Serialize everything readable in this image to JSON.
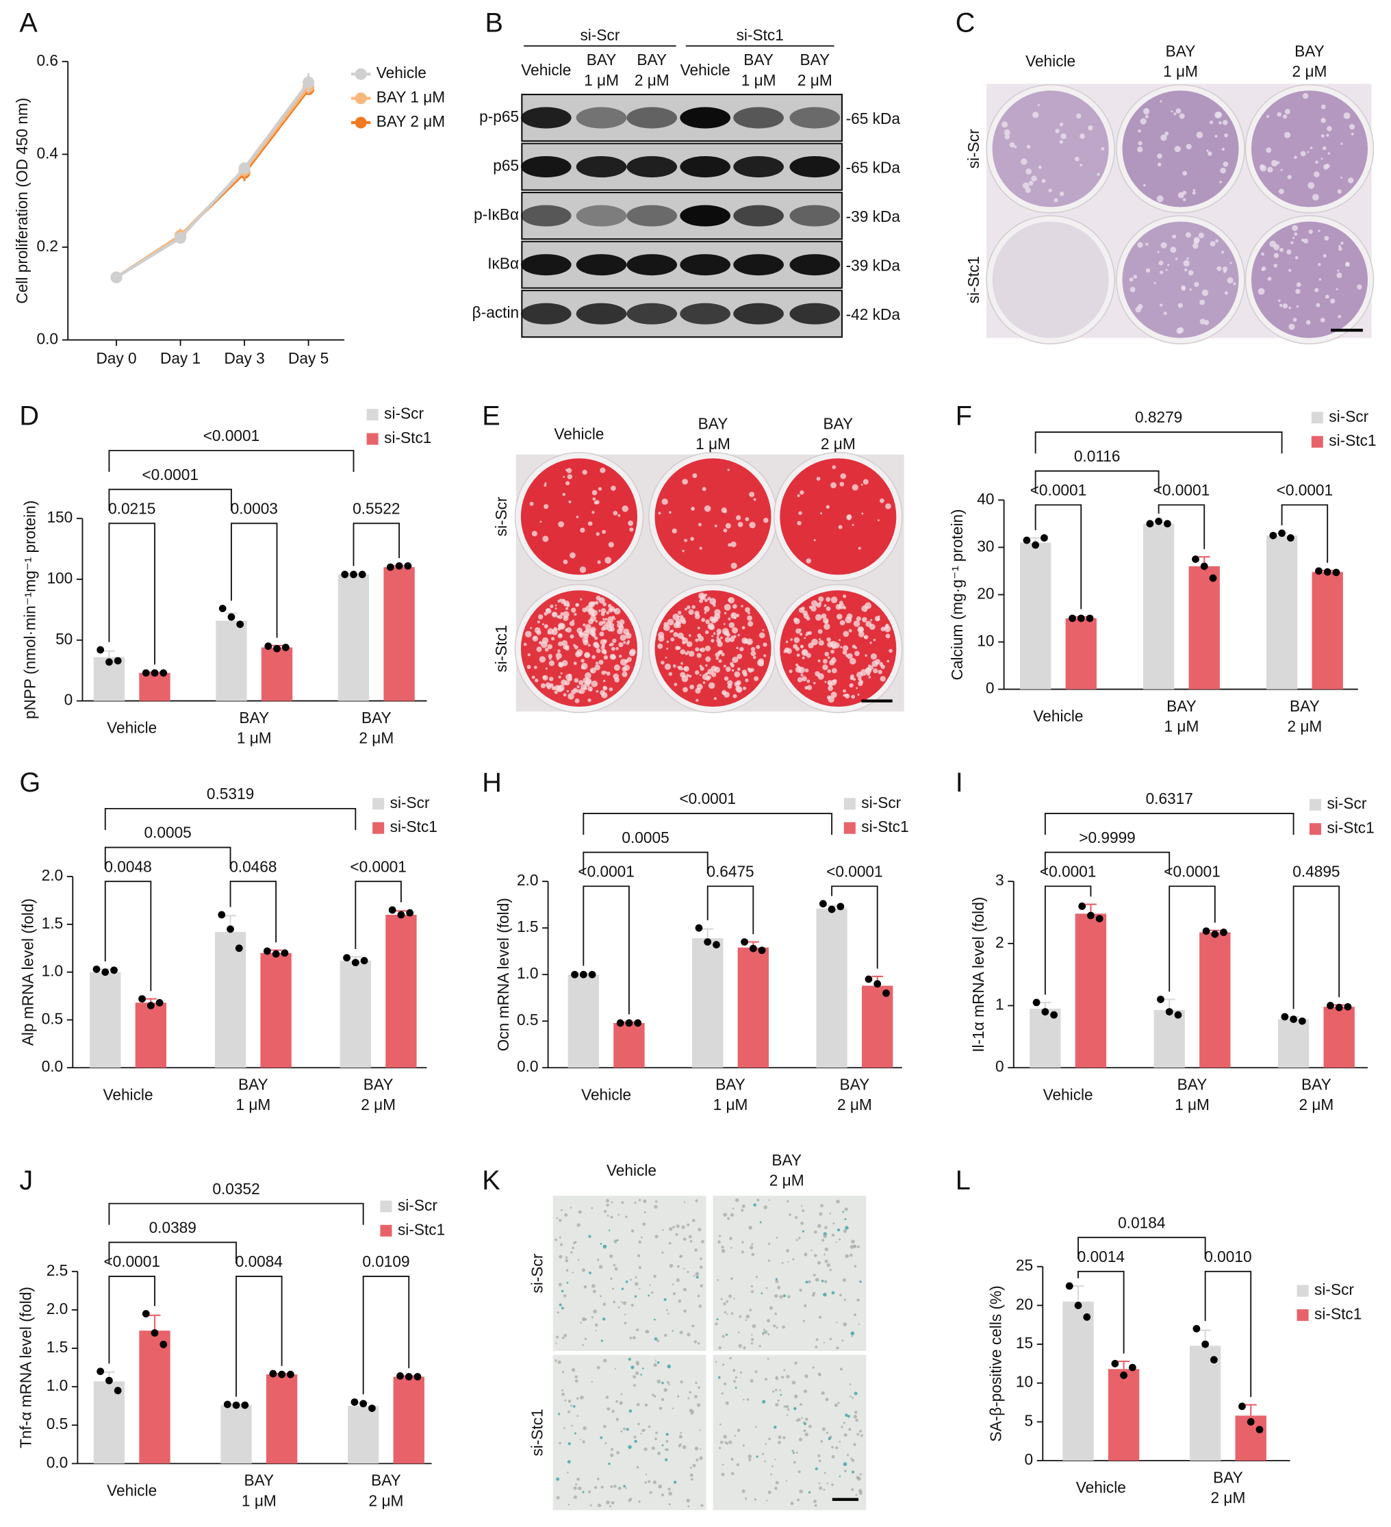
{
  "chart_data": [
    {
      "panel": "A",
      "type": "line",
      "ylabel": "Cell proliferation (OD 450 nm)",
      "categories": [
        [
          "Day 0"
        ],
        [
          "Day 1"
        ],
        [
          "Day 3"
        ],
        [
          "Day 5"
        ]
      ],
      "ylim": [
        0,
        0.6
      ],
      "yticks": [
        {
          "value": 0,
          "label": "0.0"
        },
        0.2,
        0.4,
        0.6
      ],
      "legend": "upper right",
      "series": [
        {
          "name": "Vehicle",
          "color": "#cfcfcf",
          "values": [
            0.135,
            0.22,
            0.37,
            0.555
          ],
          "errors": [
            0.005,
            0.012,
            0.012,
            0.02
          ]
        },
        {
          "name": "BAY 1 μM",
          "color": "#f7b77a",
          "values": [
            0.135,
            0.225,
            0.365,
            0.545
          ],
          "errors": [
            0.005,
            0.015,
            0.015,
            0.015
          ]
        },
        {
          "name": "BAY 2 μM",
          "color": "#f07a1f",
          "values": [
            0.135,
            0.225,
            0.36,
            0.54
          ],
          "errors": [
            0.005,
            0.01,
            0.018,
            0.012
          ]
        }
      ]
    },
    {
      "panel": "D",
      "type": "bar",
      "ylabel": "pNPP (nmol·min⁻¹mg⁻¹ protein)",
      "categories": [
        [
          "Vehicle"
        ],
        [
          "BAY",
          "1 μM"
        ],
        [
          "BAY",
          "2 μM"
        ]
      ],
      "ylim": [
        0,
        150
      ],
      "yticks": [
        0,
        50,
        100,
        150
      ],
      "legend": "upper right",
      "series": [
        {
          "name": "si-Scr",
          "color": "#d9d9d9",
          "values": [
            36,
            66,
            104
          ],
          "errors": [
            5,
            6,
            0.5
          ],
          "points": [
            [
              42,
              32,
              33
            ],
            [
              76,
              69,
              63
            ],
            [
              104,
              104,
              104
            ]
          ]
        },
        {
          "name": "si-Stc1",
          "color": "#e8626a",
          "values": [
            23,
            44,
            110
          ],
          "errors": [
            0.5,
            1.5,
            1
          ],
          "points": [
            [
              23,
              23,
              23
            ],
            [
              45,
              43,
              44
            ],
            [
              110,
              111,
              111
            ]
          ]
        }
      ],
      "comparisons": [
        {
          "label": "0.0215",
          "from": [
            0,
            0
          ],
          "to": [
            0,
            1
          ]
        },
        {
          "label": "0.0003",
          "from": [
            1,
            0
          ],
          "to": [
            1,
            1
          ]
        },
        {
          "label": "0.5522",
          "from": [
            2,
            0
          ],
          "to": [
            2,
            1
          ]
        },
        {
          "label": "<0.0001",
          "from": [
            0,
            0
          ],
          "to": [
            1,
            0
          ]
        },
        {
          "label": "<0.0001",
          "from": [
            0,
            0
          ],
          "to": [
            2,
            0
          ]
        }
      ]
    },
    {
      "panel": "F",
      "type": "bar",
      "ylabel": "Calcium (mg·g⁻¹ protein)",
      "categories": [
        [
          "Vehicle"
        ],
        [
          "BAY",
          "1 μM"
        ],
        [
          "BAY",
          "2 μM"
        ]
      ],
      "ylim": [
        0,
        40
      ],
      "yticks": [
        0,
        10,
        20,
        30,
        40
      ],
      "legend": "upper right",
      "series": [
        {
          "name": "si-Scr",
          "color": "#d9d9d9",
          "values": [
            31,
            35,
            32.5
          ],
          "errors": [
            1,
            0.3,
            0.5
          ],
          "points": [
            [
              31.5,
              30.5,
              32
            ],
            [
              35,
              35.5,
              35
            ],
            [
              32.5,
              33,
              32
            ]
          ]
        },
        {
          "name": "si-Stc1",
          "color": "#e8626a",
          "values": [
            15,
            26,
            24.8
          ],
          "errors": [
            0.3,
            2,
            0.3
          ],
          "points": [
            [
              15,
              15,
              15
            ],
            [
              27.5,
              26,
              23.5
            ],
            [
              25,
              24.8,
              24.7
            ]
          ]
        }
      ],
      "comparisons": [
        {
          "label": "<0.0001",
          "from": [
            0,
            0
          ],
          "to": [
            0,
            1
          ]
        },
        {
          "label": "<0.0001",
          "from": [
            1,
            0
          ],
          "to": [
            1,
            1
          ]
        },
        {
          "label": "<0.0001",
          "from": [
            2,
            0
          ],
          "to": [
            2,
            1
          ]
        },
        {
          "label": "0.0116",
          "from": [
            0,
            0
          ],
          "to": [
            1,
            0
          ]
        },
        {
          "label": "0.8279",
          "from": [
            0,
            0
          ],
          "to": [
            2,
            0
          ]
        }
      ]
    },
    {
      "panel": "G",
      "type": "bar",
      "ylabel": "Alp mRNA level (fold)",
      "categories": [
        [
          "Vehicle"
        ],
        [
          "BAY",
          "1 μM"
        ],
        [
          "BAY",
          "2 μM"
        ]
      ],
      "ylim": [
        0,
        2
      ],
      "yticks": [
        {
          "value": 0,
          "label": "0.0"
        },
        0.5,
        {
          "value": 1,
          "label": "1.0"
        },
        1.5,
        {
          "value": 2,
          "label": "2.0"
        }
      ],
      "legend": "upper right",
      "series": [
        {
          "name": "si-Scr",
          "color": "#d9d9d9",
          "values": [
            1.0,
            1.42,
            1.12
          ],
          "errors": [
            0.03,
            0.17,
            0.04
          ],
          "points": [
            [
              1.03,
              1.0,
              1.02
            ],
            [
              1.6,
              1.45,
              1.25
            ],
            [
              1.15,
              1.1,
              1.12
            ]
          ]
        },
        {
          "name": "si-Stc1",
          "color": "#e8626a",
          "values": [
            0.68,
            1.2,
            1.6
          ],
          "errors": [
            0.04,
            0.03,
            0.04
          ],
          "points": [
            [
              0.72,
              0.65,
              0.68
            ],
            [
              1.22,
              1.19,
              1.2
            ],
            [
              1.65,
              1.6,
              1.62
            ]
          ]
        }
      ],
      "comparisons": [
        {
          "label": "0.0048",
          "from": [
            0,
            0
          ],
          "to": [
            0,
            1
          ]
        },
        {
          "label": "0.0468",
          "from": [
            1,
            0
          ],
          "to": [
            1,
            1
          ]
        },
        {
          "label": "<0.0001",
          "from": [
            2,
            0
          ],
          "to": [
            2,
            1
          ]
        },
        {
          "label": "0.0005",
          "from": [
            0,
            0
          ],
          "to": [
            1,
            0
          ]
        },
        {
          "label": "0.5319",
          "from": [
            0,
            0
          ],
          "to": [
            2,
            0
          ]
        }
      ]
    },
    {
      "panel": "H",
      "type": "bar",
      "ylabel": "Ocn mRNA level (fold)",
      "categories": [
        [
          "Vehicle"
        ],
        [
          "BAY",
          "1 μM"
        ],
        [
          "BAY",
          "2 μM"
        ]
      ],
      "ylim": [
        0,
        2
      ],
      "yticks": [
        {
          "value": 0,
          "label": "0.0"
        },
        0.5,
        {
          "value": 1,
          "label": "1.0"
        },
        1.5,
        {
          "value": 2,
          "label": "2.0"
        }
      ],
      "legend": "upper right",
      "series": [
        {
          "name": "si-Scr",
          "color": "#d9d9d9",
          "values": [
            1.0,
            1.39,
            1.71
          ],
          "errors": [
            0.01,
            0.1,
            0.03
          ],
          "points": [
            [
              1,
              1,
              1
            ],
            [
              1.5,
              1.35,
              1.32
            ],
            [
              1.76,
              1.7,
              1.73
            ]
          ]
        },
        {
          "name": "si-Stc1",
          "color": "#e8626a",
          "values": [
            0.48,
            1.29,
            0.88
          ],
          "errors": [
            0.01,
            0.06,
            0.1
          ],
          "points": [
            [
              0.48,
              0.48,
              0.48
            ],
            [
              1.35,
              1.28,
              1.26
            ],
            [
              0.95,
              0.9,
              0.8
            ]
          ]
        }
      ],
      "comparisons": [
        {
          "label": "<0.0001",
          "from": [
            0,
            0
          ],
          "to": [
            0,
            1
          ]
        },
        {
          "label": "0.6475",
          "from": [
            1,
            0
          ],
          "to": [
            1,
            1
          ]
        },
        {
          "label": "<0.0001",
          "from": [
            2,
            0
          ],
          "to": [
            2,
            1
          ]
        },
        {
          "label": "0.0005",
          "from": [
            0,
            0
          ],
          "to": [
            1,
            0
          ]
        },
        {
          "label": "<0.0001",
          "from": [
            0,
            0
          ],
          "to": [
            2,
            0
          ]
        }
      ]
    },
    {
      "panel": "I",
      "type": "bar",
      "ylabel": "Il-1α mRNA level (fold)",
      "categories": [
        [
          "Vehicle"
        ],
        [
          "BAY",
          "1 μM"
        ],
        [
          "BAY",
          "2 μM"
        ]
      ],
      "ylim": [
        0,
        3
      ],
      "yticks": [
        0,
        1,
        2,
        3
      ],
      "legend": "upper right",
      "series": [
        {
          "name": "si-Scr",
          "color": "#d9d9d9",
          "values": [
            0.95,
            0.93,
            0.78
          ],
          "errors": [
            0.1,
            0.17,
            0.04
          ],
          "points": [
            [
              1.05,
              0.9,
              0.85
            ],
            [
              1.1,
              0.9,
              0.85
            ],
            [
              0.82,
              0.78,
              0.75
            ]
          ]
        },
        {
          "name": "si-Stc1",
          "color": "#e8626a",
          "values": [
            2.48,
            2.18,
            0.98
          ],
          "errors": [
            0.15,
            0.03,
            0.03
          ],
          "points": [
            [
              2.6,
              2.45,
              2.4
            ],
            [
              2.2,
              2.15,
              2.18
            ],
            [
              1.0,
              0.97,
              0.98
            ]
          ]
        }
      ],
      "comparisons": [
        {
          "label": "<0.0001",
          "from": [
            0,
            0
          ],
          "to": [
            0,
            1
          ]
        },
        {
          "label": "<0.0001",
          "from": [
            1,
            0
          ],
          "to": [
            1,
            1
          ]
        },
        {
          "label": "0.4895",
          "from": [
            2,
            0
          ],
          "to": [
            2,
            1
          ]
        },
        {
          "label": ">0.9999",
          "from": [
            0,
            0
          ],
          "to": [
            1,
            0
          ]
        },
        {
          "label": "0.6317",
          "from": [
            0,
            0
          ],
          "to": [
            2,
            0
          ]
        }
      ]
    },
    {
      "panel": "J",
      "type": "bar",
      "ylabel": "Tnf-α mRNA level (fold)",
      "categories": [
        [
          "Vehicle"
        ],
        [
          "BAY",
          "1 μM"
        ],
        [
          "BAY",
          "2 μM"
        ]
      ],
      "ylim": [
        0,
        2.5
      ],
      "yticks": [
        {
          "value": 0,
          "label": "0.0"
        },
        0.5,
        {
          "value": 1,
          "label": "1.0"
        },
        1.5,
        {
          "value": 2,
          "label": "2.0"
        },
        2.5
      ],
      "legend": "upper right",
      "series": [
        {
          "name": "si-Scr",
          "color": "#d9d9d9",
          "values": [
            1.07,
            0.76,
            0.75
          ],
          "errors": [
            0.12,
            0.01,
            0.04
          ],
          "points": [
            [
              1.2,
              1.08,
              0.95
            ],
            [
              0.77,
              0.76,
              0.76
            ],
            [
              0.8,
              0.78,
              0.72
            ]
          ]
        },
        {
          "name": "si-Stc1",
          "color": "#e8626a",
          "values": [
            1.73,
            1.16,
            1.13
          ],
          "errors": [
            0.2,
            0.01,
            0.01
          ],
          "points": [
            [
              1.95,
              1.7,
              1.55
            ],
            [
              1.17,
              1.16,
              1.16
            ],
            [
              1.14,
              1.13,
              1.13
            ]
          ]
        }
      ],
      "comparisons": [
        {
          "label": "<0.0001",
          "from": [
            0,
            0
          ],
          "to": [
            0,
            1
          ]
        },
        {
          "label": "0.0084",
          "from": [
            1,
            0
          ],
          "to": [
            1,
            1
          ]
        },
        {
          "label": "0.0109",
          "from": [
            2,
            0
          ],
          "to": [
            2,
            1
          ]
        },
        {
          "label": "0.0389",
          "from": [
            0,
            0
          ],
          "to": [
            1,
            0
          ]
        },
        {
          "label": "0.0352",
          "from": [
            0,
            0
          ],
          "to": [
            2,
            0
          ]
        }
      ]
    },
    {
      "panel": "L",
      "type": "bar",
      "ylabel": "SA-β-positive cells (%)",
      "categories": [
        [
          "Vehicle"
        ],
        [
          "BAY",
          "2 μM"
        ]
      ],
      "ylim": [
        0,
        25
      ],
      "yticks": [
        0,
        5,
        10,
        15,
        20,
        25
      ],
      "legend": "center right",
      "series": [
        {
          "name": "si-Scr",
          "color": "#d9d9d9",
          "values": [
            20.5,
            14.8
          ],
          "errors": [
            2,
            2
          ],
          "points": [
            [
              22.5,
              20,
              18.5
            ],
            [
              17,
              15,
              13
            ]
          ]
        },
        {
          "name": "si-Stc1",
          "color": "#e8626a",
          "values": [
            11.8,
            5.8
          ],
          "errors": [
            1,
            1.4
          ],
          "points": [
            [
              12.5,
              11,
              12
            ],
            [
              7,
              5,
              4
            ]
          ]
        }
      ],
      "comparisons": [
        {
          "label": "0.0014",
          "from": [
            0,
            0
          ],
          "to": [
            0,
            1
          ]
        },
        {
          "label": "0.0010",
          "from": [
            1,
            0
          ],
          "to": [
            1,
            1
          ]
        },
        {
          "label": "0.0184",
          "from": [
            0,
            0
          ],
          "to": [
            1,
            0
          ]
        }
      ]
    }
  ],
  "blot": {
    "panel": "B",
    "groups": [
      "si-Scr",
      "si-Stc1"
    ],
    "lanes": [
      [
        "Vehicle"
      ],
      [
        "BAY",
        "1 μM"
      ],
      [
        "BAY",
        "2 μM"
      ],
      [
        "Vehicle"
      ],
      [
        "BAY",
        "1 μM"
      ],
      [
        "BAY",
        "2 μM"
      ]
    ],
    "proteins": [
      {
        "name": "p-p65",
        "size": "-65 kDa"
      },
      {
        "name": "p65",
        "size": "-65 kDa"
      },
      {
        "name": "p-IκBα",
        "size": "-39 kDa"
      },
      {
        "name": "IκBα",
        "size": "-39 kDa"
      },
      {
        "name": "β-actin",
        "size": "-42 kDa"
      }
    ]
  },
  "plate_c": {
    "panel": "C",
    "columns": [
      [
        "Vehicle"
      ],
      [
        "BAY",
        "1 μM"
      ],
      [
        "BAY",
        "2 μM"
      ]
    ],
    "rows": [
      "si-Scr",
      "si-Stc1"
    ]
  },
  "plate_e": {
    "panel": "E",
    "columns": [
      [
        "Vehicle"
      ],
      [
        "BAY",
        "1 μM"
      ],
      [
        "BAY",
        "2 μM"
      ]
    ],
    "rows": [
      "si-Scr",
      "si-Stc1"
    ]
  },
  "micrographs_k": {
    "panel": "K",
    "columns": [
      [
        "Vehicle"
      ],
      [
        "BAY",
        "2 μM"
      ]
    ],
    "rows": [
      "si-Scr",
      "si-Stc1"
    ]
  }
}
